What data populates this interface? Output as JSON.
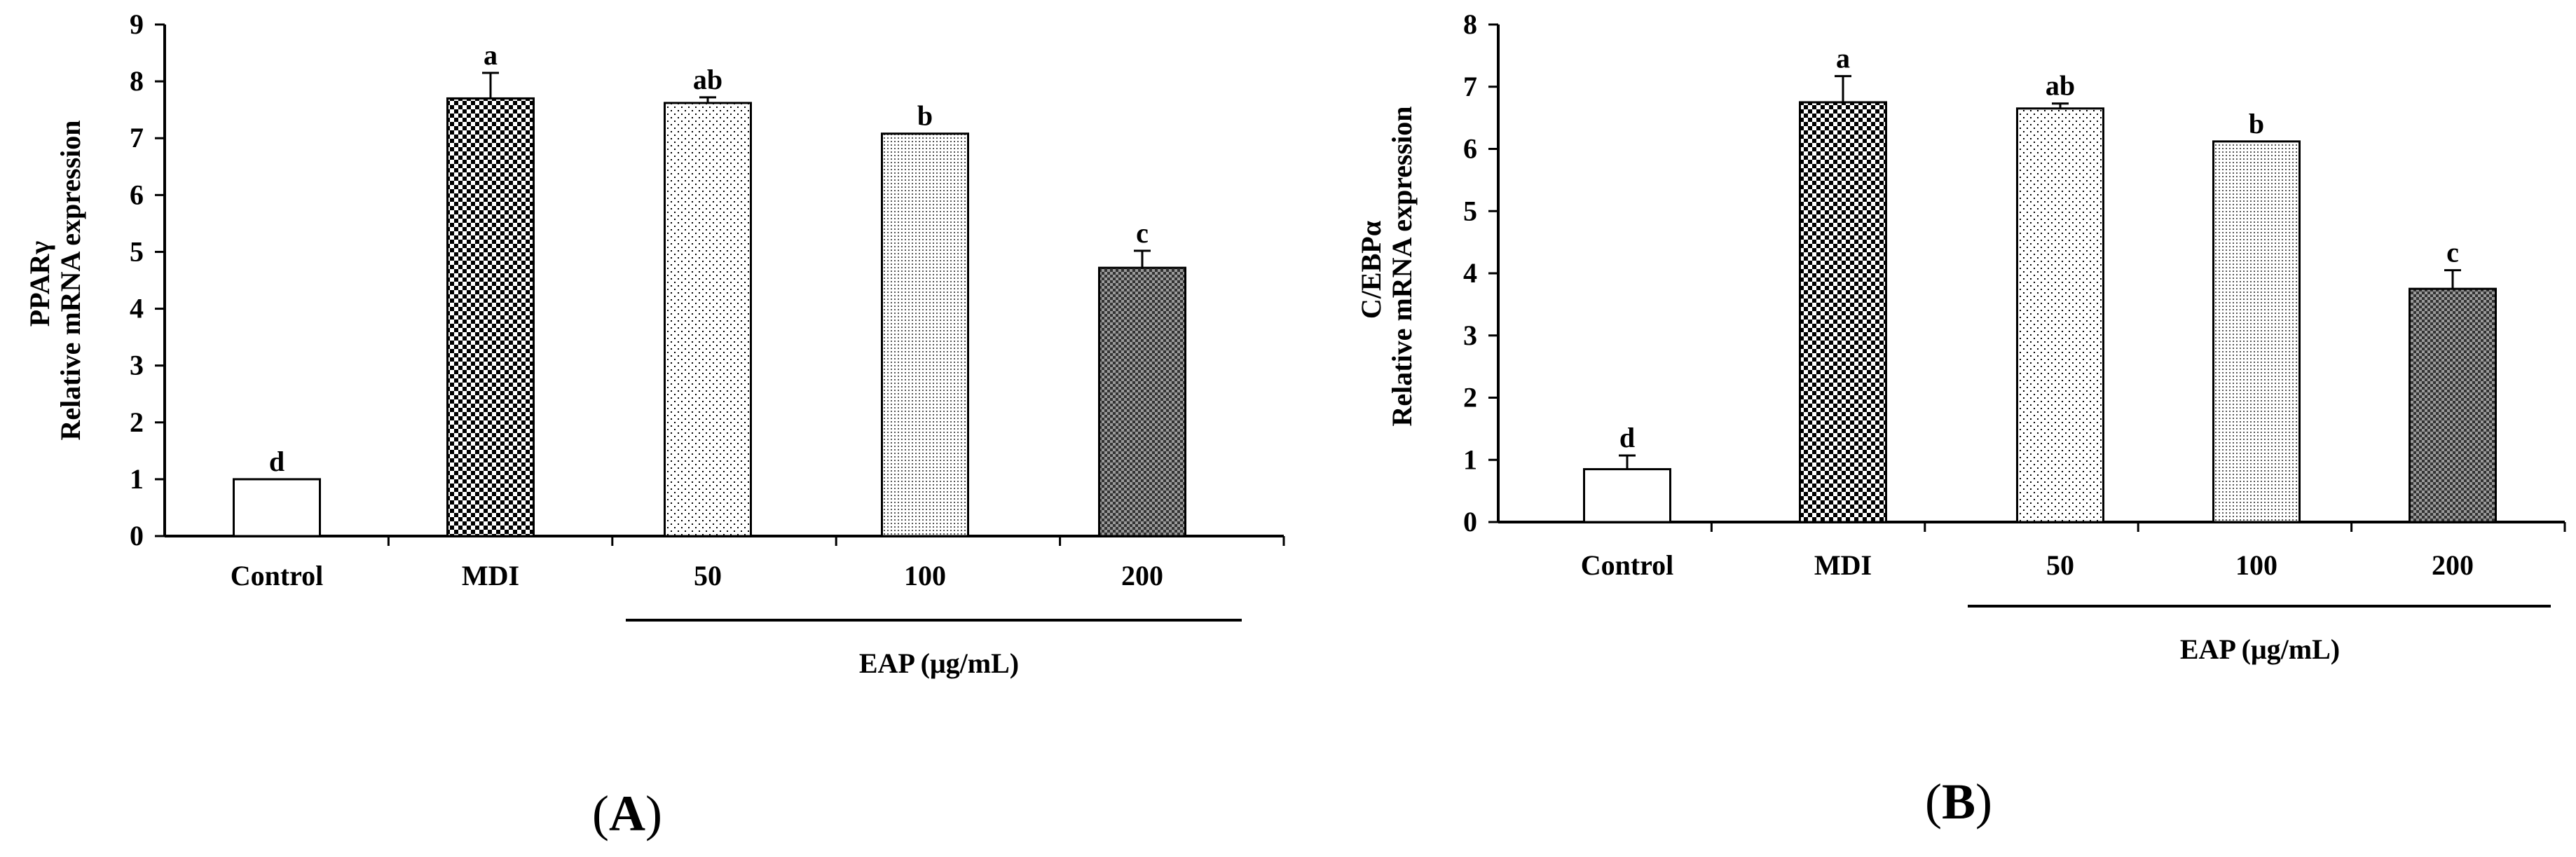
{
  "chart_data": [
    {
      "type": "bar",
      "panel": "A",
      "categories": [
        "Control",
        "MDI",
        "50",
        "100",
        "200"
      ],
      "values": [
        1.0,
        7.7,
        7.62,
        7.08,
        4.72
      ],
      "errors": [
        0.0,
        0.45,
        0.1,
        0.0,
        0.3
      ],
      "significance": [
        "d",
        "a",
        "ab",
        "b",
        "c"
      ],
      "patterns": [
        "empty",
        "dense-check",
        "sparse-dots",
        "fine-dots",
        "dark-check"
      ],
      "ylabel_line1": "PPARγ",
      "ylabel_line2": "Relative mRNA expression",
      "ylim": [
        0,
        9
      ],
      "yticks": [
        "0",
        "1",
        "2",
        "3",
        "4",
        "5",
        "6",
        "7",
        "8",
        "9"
      ],
      "group_label": "EAP (μg/mL)",
      "panel_label": {
        "open": "(",
        "letter": "A",
        "close": ")"
      }
    },
    {
      "type": "bar",
      "panel": "B",
      "categories": [
        "Control",
        "MDI",
        "50",
        "100",
        "200"
      ],
      "values": [
        0.85,
        6.75,
        6.65,
        6.12,
        3.75
      ],
      "errors": [
        0.22,
        0.42,
        0.08,
        0.0,
        0.3
      ],
      "significance": [
        "d",
        "a",
        "ab",
        "b",
        "c"
      ],
      "patterns": [
        "empty",
        "dense-check",
        "sparse-dots",
        "fine-dots",
        "dark-check"
      ],
      "ylabel_line1": "C/EBPα",
      "ylabel_line2": "Relative mRNA expression",
      "ylim": [
        0,
        8
      ],
      "yticks": [
        "0",
        "1",
        "2",
        "3",
        "4",
        "5",
        "6",
        "7",
        "8"
      ],
      "group_label": "EAP (μg/mL)",
      "panel_label": {
        "open": "(",
        "letter": "B",
        "close": ")"
      }
    }
  ]
}
